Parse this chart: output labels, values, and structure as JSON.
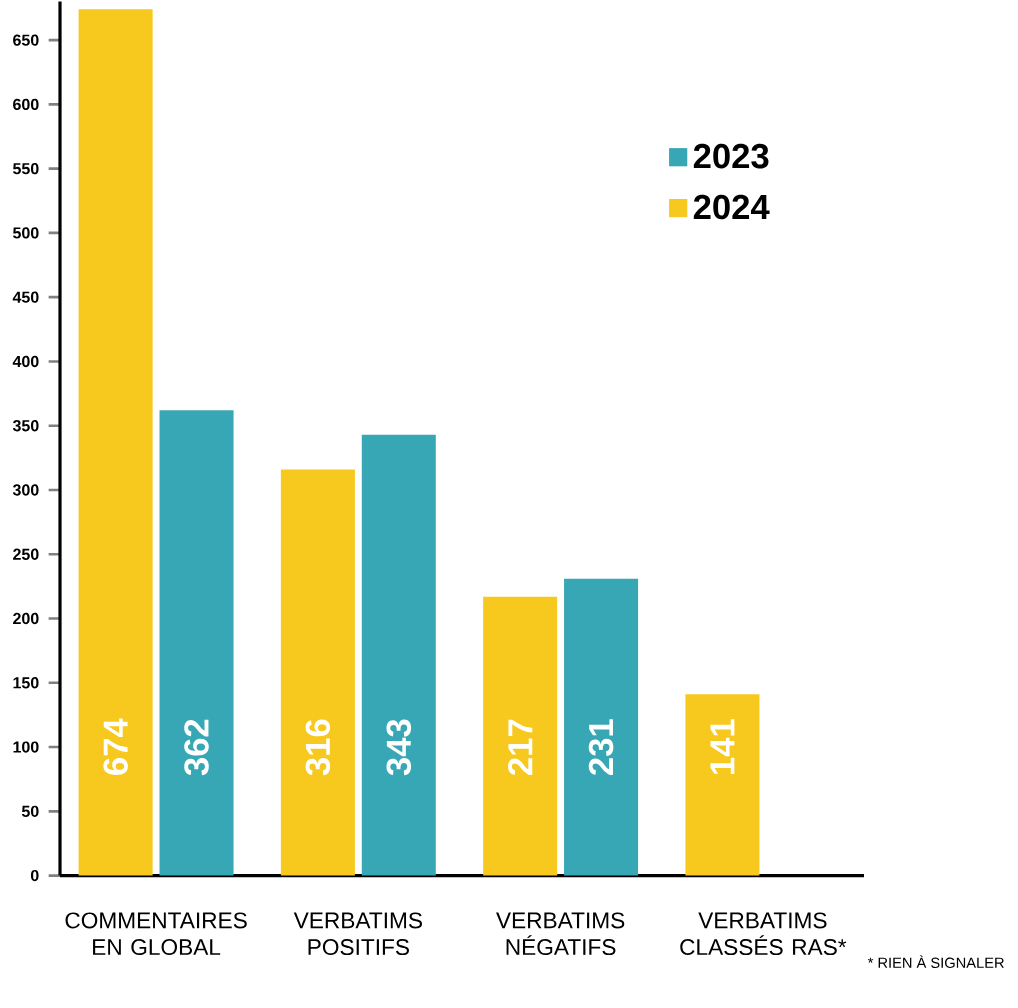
{
  "chart_data": {
    "type": "bar",
    "categories": [
      "COMMENTAIRES EN GLOBAL",
      "VERBATIMS POSITIFS",
      "VERBATIMS NÉGATIFS",
      "VERBATIMS CLASSÉS RAS*"
    ],
    "series": [
      {
        "name": "2023",
        "color": "#38a7b5",
        "values": [
          362,
          343,
          231,
          null
        ]
      },
      {
        "name": "2024",
        "color": "#f7c81e",
        "values": [
          674,
          316,
          217,
          141
        ]
      }
    ],
    "ylim": [
      0,
      680
    ],
    "yticks": [
      0,
      50,
      100,
      150,
      200,
      250,
      300,
      350,
      400,
      450,
      500,
      550,
      600,
      650
    ],
    "legend": "top right",
    "data_labels": true,
    "annotations": [
      "* RIEN À SIGNALER"
    ]
  }
}
